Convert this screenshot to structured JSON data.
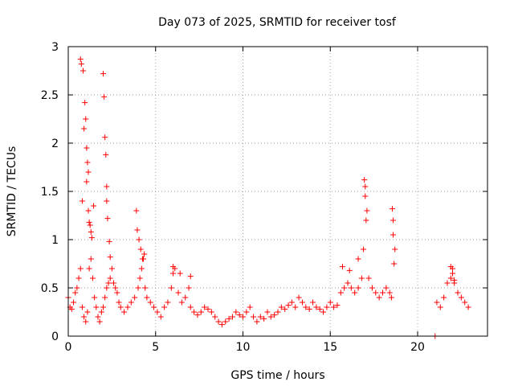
{
  "chart_data": {
    "type": "scatter",
    "title": "Day 073 of 2025, SRMTID for receiver tosf",
    "xlabel": "GPS time / hours",
    "ylabel": "SRMTID / TECUs",
    "xlim": [
      0,
      24
    ],
    "ylim": [
      0,
      3
    ],
    "xticks": [
      0,
      5,
      10,
      15,
      20
    ],
    "yticks": [
      0,
      0.5,
      1,
      1.5,
      2,
      2.5,
      3
    ],
    "xtick_labels": [
      "0",
      "5",
      "10",
      "15",
      "20"
    ],
    "ytick_labels": [
      "0",
      "0.5",
      "1",
      "1.5",
      "2",
      "2.5",
      "3"
    ],
    "grid": true,
    "marker": "plus",
    "color": "#ff0000",
    "series": [
      {
        "name": "SRMTID",
        "x": [
          0.0,
          0.1,
          0.2,
          0.3,
          0.4,
          0.5,
          0.6,
          0.7,
          0.8,
          0.9,
          1.0,
          1.1,
          1.2,
          1.3,
          1.4,
          1.5,
          1.6,
          1.7,
          1.8,
          1.9,
          2.0,
          2.1,
          2.2,
          2.3,
          2.4,
          2.5,
          2.6,
          2.7,
          2.8,
          2.9,
          3.0,
          3.2,
          3.4,
          3.6,
          3.8,
          4.0,
          4.1,
          4.2,
          4.3,
          4.4,
          4.5,
          4.7,
          4.9,
          5.1,
          5.3,
          5.5,
          5.7,
          5.9,
          6.0,
          6.1,
          6.3,
          6.5,
          6.7,
          6.9,
          7.0,
          7.2,
          7.4,
          7.6,
          7.8,
          8.0,
          8.2,
          8.4,
          8.6,
          8.8,
          9.0,
          9.2,
          9.4,
          9.6,
          9.8,
          10.0,
          10.2,
          10.4,
          10.6,
          10.8,
          11.0,
          11.2,
          11.4,
          11.6,
          11.8,
          12.0,
          12.2,
          12.4,
          12.6,
          12.8,
          13.0,
          13.2,
          13.4,
          13.6,
          13.8,
          14.0,
          14.2,
          14.4,
          14.6,
          14.8,
          15.0,
          15.2,
          15.4,
          15.6,
          15.8,
          16.0,
          16.2,
          16.4,
          16.6,
          16.8,
          16.9,
          17.0,
          17.1,
          17.2,
          17.4,
          17.6,
          17.8,
          18.0,
          18.2,
          18.4,
          18.5,
          18.6,
          18.7,
          21.0,
          21.1,
          21.3,
          21.5,
          21.7,
          21.9,
          22.0,
          22.1,
          22.3,
          22.5,
          22.7,
          22.9,
          0.7,
          0.75,
          0.9,
          0.95,
          1.05,
          1.15,
          1.25,
          1.35,
          2.0,
          2.05,
          2.1,
          2.15,
          2.2,
          1.0,
          1.05,
          1.1,
          1.15,
          2.2,
          2.25,
          0.8,
          0.85,
          1.2,
          1.3,
          1.45,
          2.35,
          2.4,
          3.9,
          3.95,
          4.05,
          4.15,
          4.25,
          4.35,
          16.95,
          17.0,
          17.05,
          18.55,
          18.6,
          18.65,
          15.7,
          16.1,
          16.6,
          6.0,
          6.4,
          7.0,
          21.9,
          22.0,
          22.1
        ],
        "y": [
          0.4,
          0.3,
          0.28,
          0.35,
          0.45,
          0.5,
          0.6,
          0.7,
          0.3,
          0.2,
          0.15,
          0.25,
          0.7,
          0.8,
          0.6,
          0.4,
          0.3,
          0.2,
          0.15,
          0.25,
          0.3,
          0.4,
          0.5,
          0.55,
          0.6,
          0.7,
          0.55,
          0.5,
          0.45,
          0.35,
          0.3,
          0.25,
          0.3,
          0.35,
          0.4,
          0.5,
          0.6,
          0.7,
          0.8,
          0.5,
          0.4,
          0.35,
          0.3,
          0.25,
          0.2,
          0.3,
          0.35,
          0.5,
          0.65,
          0.7,
          0.45,
          0.35,
          0.4,
          0.5,
          0.3,
          0.25,
          0.22,
          0.25,
          0.3,
          0.28,
          0.25,
          0.2,
          0.15,
          0.12,
          0.15,
          0.18,
          0.2,
          0.25,
          0.22,
          0.2,
          0.25,
          0.3,
          0.2,
          0.15,
          0.2,
          0.18,
          0.25,
          0.2,
          0.22,
          0.25,
          0.3,
          0.28,
          0.32,
          0.35,
          0.3,
          0.4,
          0.35,
          0.3,
          0.28,
          0.35,
          0.3,
          0.28,
          0.25,
          0.3,
          0.35,
          0.3,
          0.32,
          0.45,
          0.5,
          0.55,
          0.5,
          0.45,
          0.5,
          0.6,
          0.9,
          1.55,
          1.3,
          0.6,
          0.5,
          0.45,
          0.4,
          0.45,
          0.5,
          0.45,
          0.4,
          1.2,
          0.9,
          0.0,
          0.35,
          0.3,
          0.4,
          0.55,
          0.6,
          0.7,
          0.55,
          0.45,
          0.4,
          0.35,
          0.3,
          2.87,
          2.82,
          2.15,
          2.42,
          1.6,
          1.3,
          1.15,
          1.02,
          2.72,
          2.48,
          2.06,
          1.88,
          1.55,
          2.25,
          1.95,
          1.8,
          1.7,
          1.4,
          1.22,
          1.4,
          2.75,
          1.18,
          1.08,
          1.35,
          0.98,
          0.82,
          1.3,
          1.1,
          1.0,
          0.9,
          0.8,
          0.85,
          1.62,
          1.45,
          1.2,
          1.32,
          1.05,
          0.75,
          0.72,
          0.68,
          0.8,
          0.72,
          0.65,
          0.62,
          0.72,
          0.65,
          0.58
        ]
      }
    ]
  }
}
